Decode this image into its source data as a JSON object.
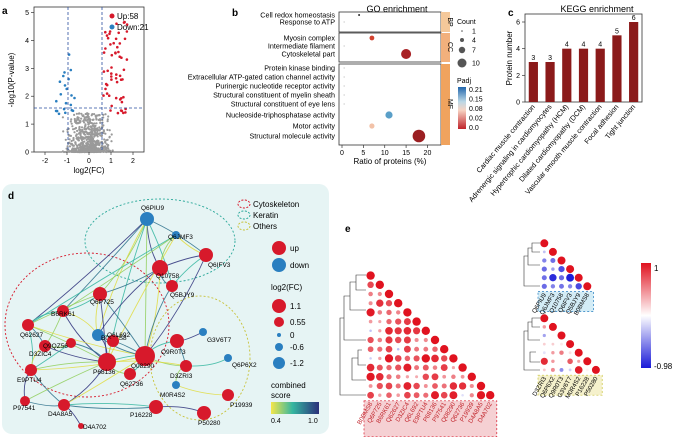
{
  "panels": {
    "a": "a",
    "b": "b",
    "c": "c",
    "d": "d",
    "e": "e"
  },
  "colors": {
    "up": "#d7192b",
    "down": "#2a7fc0",
    "neutral": "#9a9a9a",
    "bar": "#8b1a1a",
    "bp": "#f4c89a",
    "cc": "#f2b07c",
    "mf": "#f0a35e",
    "teal_bg": "#e6f4f4"
  },
  "volcano": {
    "legend_up": "Up:58",
    "legend_down": "Down:21",
    "xlabel": "log2(FC)",
    "ylabel": "-log10(P-value)",
    "xticks": [
      "-2",
      "-1",
      "0",
      "1",
      "2"
    ],
    "yticks": [
      "0",
      "1",
      "2",
      "3",
      "4",
      "5"
    ]
  },
  "go": {
    "title": "GO enrichment",
    "terms": [
      "Cell redox homeostasis",
      "Response to ATP",
      "Myosin complex",
      "Intermediate filament",
      "Cytoskeletal part",
      "Protein kinase binding",
      "Extracellular ATP-gated cation channel activity",
      "Purinergic nucleotide receptor activity",
      "Structural constituent of myelin sheath",
      "Structural constituent of eye lens",
      "Nucleoside-triphosphatase activity",
      "Motor activity",
      "Structural molecule activity"
    ],
    "categories": [
      "BP",
      "CC",
      "MF"
    ],
    "xlabel": "Ratio of proteins (%)",
    "xticks": [
      "0",
      "5",
      "10",
      "15",
      "20"
    ],
    "count_title": "Count",
    "count_values": [
      "1",
      "4",
      "7",
      "10"
    ],
    "padj_title": "Padj",
    "padj_ticks": [
      "0.21",
      "0.15",
      "0.08",
      "0.02",
      "0.0"
    ]
  },
  "chart_data": {
    "type": "bar",
    "title": "KEGG enrichment",
    "ylabel": "Protein number",
    "categories": [
      "Cardiac muscle contraction",
      "Adrenergic signaling in cardiomyocytes",
      "Hypertrophic cardiomyopathy (HCM)",
      "Dilated cardiomyopathy (DCM)",
      "Vascular smooth muscle contraction",
      "Focal adhesion",
      "Tight junction"
    ],
    "values": [
      3,
      3,
      4,
      4,
      4,
      5,
      6
    ],
    "value_labels": [
      "3",
      "3",
      "4",
      "4",
      "4",
      "5",
      "6"
    ],
    "yticks": [
      "0",
      "2",
      "4",
      "6"
    ],
    "ylim": [
      0,
      6.6
    ]
  },
  "network": {
    "legend_cyto": "Cytoskeleton",
    "legend_keratin": "Keratin",
    "legend_others": "Others",
    "legend_up": "up",
    "legend_down": "down",
    "fc_title": "log2(FC)",
    "fc_values": [
      "1.1",
      "0.55",
      "0",
      "-0.6",
      "-1.2"
    ],
    "score_title": "combined",
    "score_title2": "score",
    "score_min": "0.4",
    "score_max": "1.0",
    "nodes": [
      "Q6PIU9",
      "Q6JMF3",
      "Q10758",
      "Q6IFV3",
      "Q5BJY9",
      "Q6P725",
      "B6RK61",
      "Q62627",
      "B0BMS8",
      "D3ZIC4",
      "Q9QZ56",
      "E9PTU4",
      "P68136",
      "Q6L692",
      "Q08290",
      "Q62736",
      "P97541",
      "D4A8A5",
      "D4A702",
      "G3V6T7",
      "Q9R0T3",
      "D3ZRI3",
      "Q6P6X2",
      "M0R4S2",
      "P19939",
      "P16228",
      "P50280"
    ]
  },
  "corr": {
    "left_labels": [
      "B0BMS8",
      "Q6P725",
      "B6RK61",
      "Q62627",
      "D3ZIC4",
      "Q6L692",
      "E9PTU4",
      "P68136",
      "P97541",
      "Q08290",
      "Q62736",
      "P19939",
      "D4A8A5",
      "D4A702"
    ],
    "right_top_labels": [
      "Q6PIU9",
      "Q6JMF3",
      "Q10758",
      "Q6IFV3",
      "Q5BJY9",
      "B0BMS8"
    ],
    "right_bottom_labels": [
      "D3ZRI3",
      "Q6P6X2",
      "Q9R0T3",
      "G3V6T7",
      "M0R4S2",
      "P16228",
      "P50280"
    ],
    "scale_max": "1",
    "scale_min": "-0.98"
  }
}
